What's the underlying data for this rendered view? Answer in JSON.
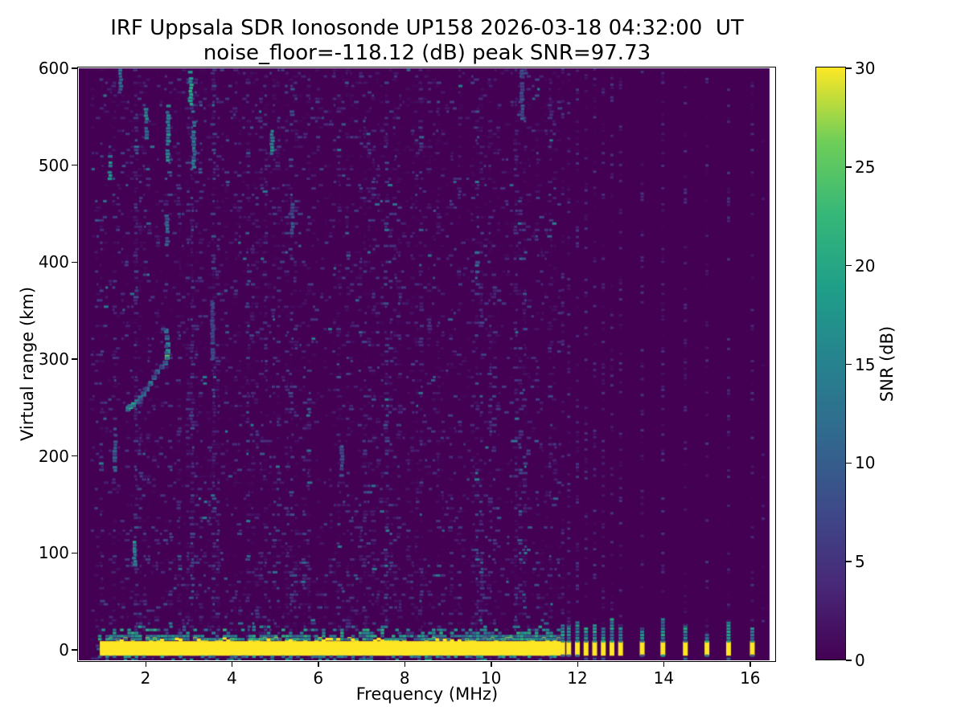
{
  "title": {
    "line1": "IRF Uppsala SDR Ionosonde UP158 2026-03-18 04:32:00  UT",
    "line2": "noise_floor=-118.12 (dB) peak SNR=97.73"
  },
  "chart_data": {
    "type": "heatmap",
    "title": "IRF Uppsala SDR Ionosonde UP158 2026-03-18 04:32:00 UT",
    "subtitle": "noise_floor=-118.12 (dB) peak SNR=97.73",
    "station": "UP158",
    "timestamp_ut": "2026-03-18 04:32:00",
    "noise_floor_db": -118.12,
    "peak_snr_db": 97.73,
    "xlabel": "Frequency (MHz)",
    "ylabel": "Virtual range (km)",
    "xlim": [
      0.45,
      16.55
    ],
    "ylim": [
      -10.8,
      600
    ],
    "x_ticks": [
      2,
      4,
      6,
      8,
      10,
      12,
      14,
      16
    ],
    "y_ticks": [
      0,
      100,
      200,
      300,
      400,
      500,
      600
    ],
    "grid": false,
    "colorbar": {
      "label": "SNR (dB)",
      "ticks": [
        0,
        5,
        10,
        15,
        20,
        25,
        30
      ],
      "min": 0,
      "max": 30,
      "colormap": "viridis",
      "position": "right"
    },
    "features": {
      "background_snr_db": 0,
      "ground_echo_band": {
        "f_start_mhz": 0.94,
        "f_end_mhz": 11.62,
        "km_min": -6,
        "km_max": 9,
        "snr_db": 30,
        "fringe_snr_db": 16,
        "fringe_km_max": 26
      },
      "stepped_frequency_bars": {
        "km_min": -6,
        "km_max": 9,
        "snr_db": 30,
        "cluster": [
          {
            "f": 11.66,
            "cap_km": 28
          },
          {
            "f": 11.8,
            "cap_km": 26
          },
          {
            "f": 12.0,
            "cap_km": 30
          },
          {
            "f": 12.2,
            "cap_km": 22
          },
          {
            "f": 12.4,
            "cap_km": 28
          },
          {
            "f": 12.6,
            "cap_km": 24
          },
          {
            "f": 12.8,
            "cap_km": 32
          },
          {
            "f": 13.0,
            "cap_km": 25
          }
        ],
        "sparse": [
          {
            "f": 13.5,
            "cap_km": 22
          },
          {
            "f": 13.98,
            "cap_km": 34
          },
          {
            "f": 14.5,
            "cap_km": 26
          },
          {
            "f": 15.0,
            "cap_km": 18
          },
          {
            "f": 15.5,
            "cap_km": 30
          },
          {
            "f": 16.05,
            "cap_km": 24
          }
        ]
      },
      "ionospheric_echo_trace": {
        "points_mhz_km_snr": [
          [
            1.6,
            249,
            19
          ],
          [
            1.66,
            251,
            21
          ],
          [
            1.72,
            253,
            20
          ],
          [
            1.8,
            256,
            14
          ],
          [
            1.88,
            260,
            12
          ],
          [
            1.96,
            264,
            13
          ],
          [
            2.04,
            269,
            11
          ],
          [
            2.12,
            275,
            14
          ],
          [
            2.2,
            281,
            12
          ],
          [
            2.28,
            287,
            11
          ],
          [
            2.38,
            292,
            10
          ],
          [
            2.46,
            296,
            13
          ],
          [
            2.5,
            302,
            26
          ],
          [
            2.52,
            308,
            18
          ],
          [
            2.52,
            315,
            15
          ],
          [
            2.5,
            322,
            13
          ],
          [
            2.48,
            329,
            12
          ]
        ]
      },
      "rfi_streaks_mhz_km0_km1_snr": [
        [
          3.05,
          563,
          600,
          17
        ],
        [
          2.52,
          505,
          568,
          14
        ],
        [
          2.02,
          528,
          560,
          13
        ],
        [
          3.12,
          498,
          545,
          12
        ],
        [
          1.18,
          486,
          512,
          14
        ],
        [
          4.93,
          512,
          536,
          15
        ],
        [
          1.42,
          575,
          600,
          11
        ],
        [
          1.75,
          88,
          112,
          15
        ],
        [
          2.5,
          418,
          450,
          10
        ],
        [
          10.72,
          548,
          600,
          8
        ],
        [
          9.68,
          390,
          418,
          10
        ],
        [
          3.55,
          300,
          360,
          7
        ],
        [
          5.4,
          430,
          460,
          8
        ],
        [
          1.3,
          185,
          228,
          9
        ],
        [
          6.55,
          180,
          210,
          8
        ]
      ],
      "rfi_stripe_boost_mhz": [
        [
          1.75,
          1.8
        ],
        [
          2.5,
          2.2
        ],
        [
          2.62,
          1.7
        ],
        [
          3.05,
          1.9
        ],
        [
          3.55,
          1.7
        ],
        [
          3.9,
          1.5
        ],
        [
          4.35,
          1.6
        ],
        [
          5.4,
          1.6
        ],
        [
          6.55,
          1.4
        ],
        [
          7.55,
          1.5
        ],
        [
          8.65,
          1.3
        ],
        [
          9.68,
          1.8
        ],
        [
          10.2,
          1.4
        ],
        [
          10.72,
          1.9
        ],
        [
          11.1,
          1.4
        ]
      ]
    }
  },
  "colors": {
    "figure_bg": "#ffffff",
    "plot_bg": "#440154",
    "band_yellow": "#fde725",
    "frame": "#000000",
    "viridis_stops": [
      "#440154",
      "#482878",
      "#3e4989",
      "#31688e",
      "#26828e",
      "#1f9e89",
      "#35b779",
      "#6ece58",
      "#fde725"
    ]
  }
}
